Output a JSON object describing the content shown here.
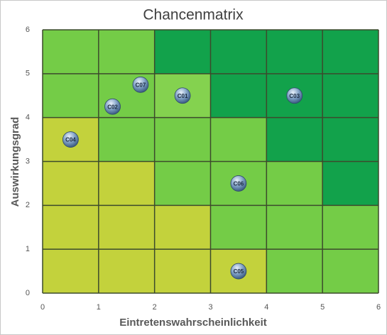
{
  "chart_data": {
    "type": "scatter",
    "title": "Chancenmatrix",
    "x_label": "Eintretenswahrscheinlichkeit",
    "y_label": "Auswirkungsgrad",
    "x": [
      2.5,
      1.25,
      4.5,
      0.5,
      3.5,
      3.5,
      1.75
    ],
    "values": [
      4.5,
      4.25,
      4.5,
      3.5,
      0.5,
      2.5,
      4.75
    ],
    "labels": [
      "C01",
      "C02",
      "C03",
      "C04",
      "C05",
      "C06",
      "C07"
    ],
    "xlim": [
      0,
      6
    ],
    "ylim": [
      0,
      6
    ],
    "xticks": [
      0,
      1,
      2,
      3,
      4,
      5,
      6
    ],
    "yticks": [
      0,
      1,
      2,
      3,
      4,
      5,
      6
    ],
    "grid": true,
    "cell_colors": [
      [
        "#c3d23c",
        "#c3d23c",
        "#c3d23c",
        "#c3d23c",
        "#74cc47",
        "#74cc47"
      ],
      [
        "#c3d23c",
        "#c3d23c",
        "#c3d23c",
        "#74cc47",
        "#74cc47",
        "#74cc47"
      ],
      [
        "#c3d23c",
        "#c3d23c",
        "#74cc47",
        "#74cc47",
        "#74cc47",
        "#12a24b"
      ],
      [
        "#c3d23c",
        "#74cc47",
        "#74cc47",
        "#74cc47",
        "#12a24b",
        "#12a24b"
      ],
      [
        "#74cc47",
        "#74cc47",
        "#84d24f",
        "#12a24b",
        "#12a24b",
        "#12a24b"
      ],
      [
        "#74cc47",
        "#74cc47",
        "#12a24b",
        "#12a24b",
        "#12a24b",
        "#12a24b"
      ]
    ]
  }
}
